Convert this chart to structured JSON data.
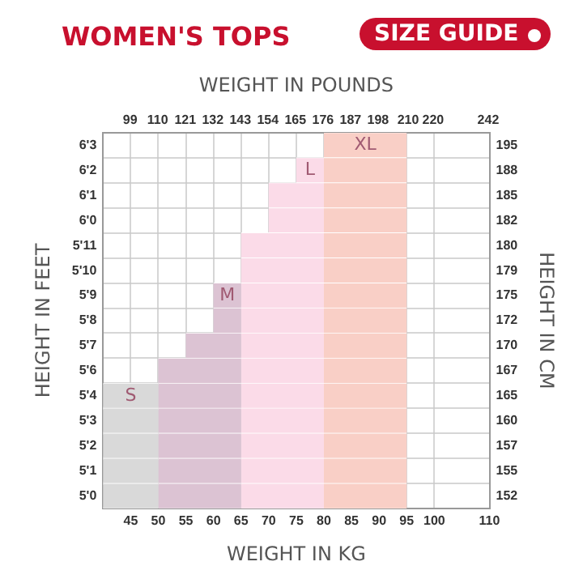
{
  "chart_data": {
    "type": "bar",
    "orientation": "horizontal",
    "title": "WOMEN'S TOPS",
    "subtitle": "SIZE GUIDE",
    "xlabel": "WEIGHT IN KG",
    "x2label": "WEIGHT IN POUNDS",
    "ylabel": "HEIGHT IN FEET",
    "y2label": "HEIGHT IN CM",
    "categories": [
      "6'3",
      "6'2",
      "6'1",
      "6'0",
      "5'11",
      "5'10",
      "5'9",
      "5'8",
      "5'7",
      "5'6",
      "5'4",
      "5'3",
      "5'2",
      "5'1",
      "5'0"
    ],
    "y2_categories": [
      "195",
      "188",
      "185",
      "182",
      "180",
      "179",
      "175",
      "172",
      "170",
      "167",
      "165",
      "160",
      "157",
      "155",
      "152"
    ],
    "xlim": [
      40,
      110
    ],
    "xticks": [
      45,
      50,
      55,
      60,
      65,
      70,
      75,
      80,
      85,
      90,
      95,
      100,
      110
    ],
    "x2lim": [
      88.2,
      242.5
    ],
    "x2ticks": [
      99,
      110,
      121,
      132,
      143,
      154,
      165,
      176,
      187,
      198,
      210,
      220,
      242
    ],
    "grid": true,
    "legend": false,
    "series": [
      {
        "name": "S",
        "color": "#d9d9d9",
        "base": [
          null,
          null,
          null,
          null,
          null,
          null,
          null,
          null,
          null,
          null,
          40,
          40,
          40,
          40,
          40
        ],
        "values": [
          null,
          null,
          null,
          null,
          null,
          null,
          null,
          null,
          null,
          null,
          10,
          10,
          10,
          10,
          10
        ]
      },
      {
        "name": "M",
        "color": "#dcc3d3",
        "base": [
          null,
          null,
          null,
          null,
          null,
          null,
          60,
          60,
          55,
          50,
          50,
          50,
          50,
          50,
          50
        ],
        "values": [
          null,
          null,
          null,
          null,
          null,
          null,
          5,
          5,
          10,
          15,
          15,
          15,
          15,
          15,
          15
        ]
      },
      {
        "name": "L",
        "color": "#fbdbe8",
        "base": [
          null,
          75,
          70,
          70,
          65,
          65,
          65,
          65,
          65,
          65,
          65,
          65,
          65,
          65,
          65
        ],
        "values": [
          null,
          5,
          10,
          10,
          15,
          15,
          15,
          15,
          15,
          15,
          15,
          15,
          15,
          15,
          15
        ]
      },
      {
        "name": "XL",
        "color": "#f9cfc6",
        "base": [
          80,
          80,
          80,
          80,
          80,
          80,
          80,
          80,
          80,
          80,
          80,
          80,
          80,
          80,
          80
        ],
        "values": [
          15,
          15,
          15,
          15,
          15,
          15,
          15,
          15,
          15,
          15,
          15,
          15,
          15,
          15,
          15
        ]
      }
    ]
  }
}
